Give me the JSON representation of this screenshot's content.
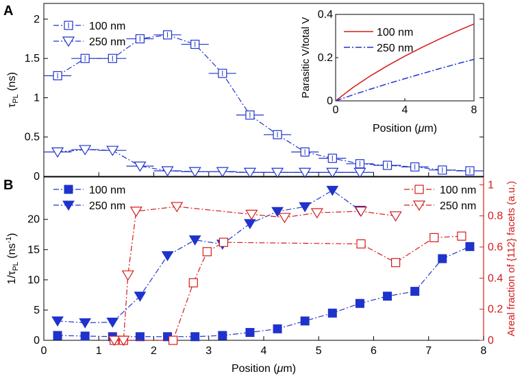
{
  "panels": {
    "a_label": "A",
    "b_label": "B"
  },
  "colors": {
    "blue": "#1f33cc",
    "red": "#d41a1a",
    "axis": "#000000"
  },
  "chart_data": [
    {
      "id": "A",
      "type": "line",
      "title": "",
      "xlabel": "",
      "ylabel": "τPL (ns)",
      "ylabel_main": "τ",
      "ylabel_sub": "PL",
      "ylabel_unit": " (ns)",
      "xlim": [
        0,
        8
      ],
      "ylim": [
        0,
        2.2
      ],
      "xticks": [],
      "yticks": [
        0,
        0.5,
        1,
        1.5,
        2
      ],
      "ytick_labels": [
        "0",
        "0.5",
        "1",
        "1.5",
        "2"
      ],
      "legend_position": "top-left",
      "series": [
        {
          "name": "100 nm",
          "marker": "square-plus",
          "x": [
            0.25,
            0.75,
            1.25,
            1.75,
            2.25,
            2.75,
            3.25,
            3.75,
            4.25,
            4.75,
            5.25,
            5.75,
            6.25,
            6.75,
            7.25,
            7.75
          ],
          "y": [
            1.28,
            1.5,
            1.5,
            1.75,
            1.8,
            1.68,
            1.31,
            0.78,
            0.53,
            0.31,
            0.23,
            0.16,
            0.14,
            0.12,
            0.08,
            0.07
          ],
          "xerr": 0.25,
          "yerr": 0.03
        },
        {
          "name": "250 nm",
          "marker": "triangle-down-open",
          "x": [
            0.25,
            0.75,
            1.25,
            1.75,
            2.25,
            2.75,
            3.25,
            3.75,
            4.25,
            4.75,
            5.25,
            5.75
          ],
          "y": [
            0.31,
            0.34,
            0.33,
            0.13,
            0.07,
            0.06,
            0.06,
            0.05,
            0.05,
            0.05,
            0.05,
            0.05
          ],
          "xerr": 0.25
        }
      ]
    },
    {
      "id": "A-inset",
      "type": "line",
      "title": "",
      "xlabel": "Position (μm)",
      "xlabel_main": "Position (",
      "xlabel_mu": "μ",
      "xlabel_end": "m)",
      "ylabel": "Parasitic V/total V",
      "xlim": [
        0,
        8
      ],
      "ylim": [
        0,
        0.4
      ],
      "xticks": [
        0,
        4,
        8
      ],
      "xtick_labels": [
        "0",
        "4",
        "8"
      ],
      "yticks": [
        0,
        0.2,
        0.4
      ],
      "ytick_labels": [
        "0",
        "0.2",
        "0.4"
      ],
      "legend_position": "top-left",
      "series": [
        {
          "name": "100 nm",
          "style": "solid",
          "x": [
            0,
            1,
            2,
            3,
            4,
            5,
            6,
            7,
            8
          ],
          "y": [
            0,
            0.062,
            0.115,
            0.163,
            0.207,
            0.248,
            0.286,
            0.322,
            0.356
          ]
        },
        {
          "name": "250 nm",
          "style": "dashdot",
          "x": [
            0,
            1,
            2,
            3,
            4,
            5,
            6,
            7,
            8
          ],
          "y": [
            0,
            0.028,
            0.054,
            0.079,
            0.103,
            0.126,
            0.149,
            0.171,
            0.192
          ]
        }
      ]
    },
    {
      "id": "B",
      "type": "line",
      "title": "",
      "xlabel": "Position (μm)",
      "xlabel_main": "Position (",
      "xlabel_mu": "μ",
      "xlabel_end": "m)",
      "ylabel": "1/τPL (ns-1)",
      "ylabel_left_main": "1/τ",
      "ylabel_left_sub": "PL",
      "ylabel_left_unit": " (ns",
      "ylabel_left_sup": "-1",
      "ylabel_left_close": ")",
      "ylabel_right": "Areal fraction of {112} facets (a.u.)",
      "xlim": [
        0,
        8
      ],
      "ylim": [
        0,
        27
      ],
      "ylim_right": [
        0,
        1.05
      ],
      "xticks": [
        0,
        1,
        2,
        3,
        4,
        5,
        6,
        7,
        8
      ],
      "xtick_labels": [
        "0",
        "1",
        "2",
        "3",
        "4",
        "5",
        "6",
        "7",
        "8"
      ],
      "yticks": [
        0,
        5,
        10,
        15,
        20
      ],
      "ytick_labels": [
        "0",
        "5",
        "10",
        "15",
        "20"
      ],
      "yticks_right": [
        0,
        0.2,
        0.4,
        0.6,
        0.8,
        1
      ],
      "ytick_labels_right": [
        "0",
        "0.2",
        "0.4",
        "0.6",
        "0.8",
        "1"
      ],
      "legend_left_position": "top-left",
      "legend_right_position": "top-right",
      "series": [
        {
          "name": "100 nm",
          "axis": "left",
          "marker": "square-filled",
          "x": [
            0.25,
            0.75,
            1.25,
            1.75,
            2.25,
            2.75,
            3.25,
            3.75,
            4.25,
            4.75,
            5.25,
            5.75,
            6.25,
            6.75,
            7.25,
            7.75
          ],
          "y": [
            0.8,
            0.7,
            0.6,
            0.6,
            0.6,
            0.6,
            0.8,
            1.3,
            1.9,
            3.2,
            4.5,
            6.1,
            7.3,
            8.1,
            13.5,
            15.5
          ]
        },
        {
          "name": "250 nm",
          "axis": "left",
          "marker": "triangle-down-filled",
          "x": [
            0.25,
            0.75,
            1.25,
            1.75,
            2.25,
            2.75,
            3.25,
            3.75,
            4.25,
            4.75,
            5.25,
            5.75
          ],
          "y": [
            3.2,
            2.9,
            3.0,
            7.3,
            14.0,
            16.6,
            15.9,
            19.3,
            21.3,
            22.1,
            24.8,
            21.5
          ]
        },
        {
          "name": "100 nm",
          "axis": "right",
          "marker": "square-open",
          "x": [
            1.28,
            1.45,
            2.35,
            2.72,
            2.97,
            3.27,
            5.77,
            6.4,
            7.1,
            7.6
          ],
          "y": [
            0.0,
            0.0,
            0.0,
            0.37,
            0.57,
            0.63,
            0.62,
            0.5,
            0.66,
            0.67
          ]
        },
        {
          "name": "250 nm",
          "axis": "right",
          "marker": "triangle-down-open",
          "x": [
            1.28,
            1.45,
            1.53,
            1.68,
            2.42,
            3.78,
            4.38,
            4.97,
            5.77,
            6.4
          ],
          "y": [
            0.0,
            0.0,
            0.42,
            0.83,
            0.86,
            0.81,
            0.79,
            0.82,
            0.83,
            0.8
          ]
        }
      ]
    }
  ]
}
